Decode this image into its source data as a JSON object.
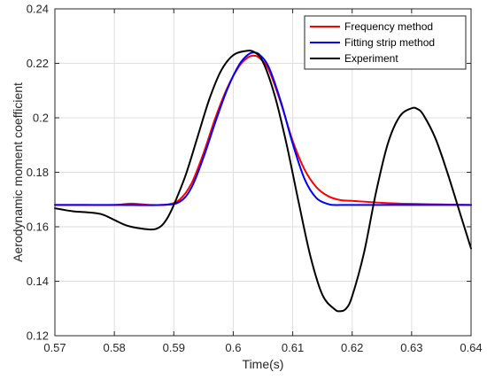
{
  "chart_data": {
    "type": "line",
    "xlabel": "Time(s)",
    "ylabel": "Aerodynamic moment coefficient",
    "xlim": [
      0.57,
      0.64
    ],
    "ylim": [
      0.12,
      0.24
    ],
    "xticks": [
      0.57,
      0.58,
      0.59,
      0.6,
      0.61,
      0.62,
      0.63,
      0.64
    ],
    "xtick_labels": [
      "0.57",
      "0.58",
      "0.59",
      "0.6",
      "0.61",
      "0.62",
      "0.63",
      "0.64"
    ],
    "yticks": [
      0.12,
      0.14,
      0.16,
      0.18,
      0.2,
      0.22,
      0.24
    ],
    "ytick_labels": [
      "0.12",
      "0.14",
      "0.16",
      "0.18",
      "0.2",
      "0.22",
      "0.24"
    ],
    "grid": true,
    "legend_position": "top-right",
    "series": [
      {
        "name": "Frequency method",
        "color": "#ff0000",
        "x": [
          0.57,
          0.575,
          0.58,
          0.583,
          0.586,
          0.589,
          0.591,
          0.593,
          0.595,
          0.597,
          0.599,
          0.601,
          0.6025,
          0.6035,
          0.6045,
          0.606,
          0.608,
          0.61,
          0.612,
          0.614,
          0.616,
          0.618,
          0.62,
          0.625,
          0.63,
          0.635,
          0.64
        ],
        "y": [
          0.168,
          0.168,
          0.168,
          0.1685,
          0.168,
          0.1682,
          0.17,
          0.176,
          0.187,
          0.2,
          0.211,
          0.219,
          0.2222,
          0.2228,
          0.2218,
          0.2175,
          0.2055,
          0.1915,
          0.181,
          0.1745,
          0.1712,
          0.1698,
          0.1695,
          0.1688,
          0.1684,
          0.1682,
          0.168
        ]
      },
      {
        "name": "Fitting strip method",
        "color": "#0000ff",
        "x": [
          0.57,
          0.58,
          0.588,
          0.591,
          0.593,
          0.595,
          0.597,
          0.599,
          0.601,
          0.6025,
          0.6035,
          0.6045,
          0.606,
          0.608,
          0.61,
          0.612,
          0.614,
          0.616,
          0.617,
          0.618,
          0.62,
          0.625,
          0.63,
          0.64
        ],
        "y": [
          0.168,
          0.168,
          0.168,
          0.1692,
          0.1745,
          0.1855,
          0.1985,
          0.2105,
          0.2195,
          0.2232,
          0.224,
          0.223,
          0.2185,
          0.206,
          0.1905,
          0.1775,
          0.1705,
          0.1683,
          0.168,
          0.168,
          0.168,
          0.168,
          0.168,
          0.168
        ]
      },
      {
        "name": "Experiment",
        "color": "#000000",
        "x": [
          0.57,
          0.573,
          0.576,
          0.578,
          0.58,
          0.582,
          0.584,
          0.586,
          0.587,
          0.588,
          0.589,
          0.59,
          0.592,
          0.594,
          0.596,
          0.598,
          0.6,
          0.602,
          0.6035,
          0.605,
          0.607,
          0.609,
          0.611,
          0.613,
          0.615,
          0.617,
          0.618,
          0.619,
          0.62,
          0.622,
          0.624,
          0.626,
          0.628,
          0.63,
          0.631,
          0.632,
          0.634,
          0.636,
          0.638,
          0.64
        ],
        "y": [
          0.1668,
          0.1657,
          0.1652,
          0.1645,
          0.1625,
          0.1605,
          0.1595,
          0.159,
          0.1592,
          0.1605,
          0.1635,
          0.168,
          0.179,
          0.193,
          0.207,
          0.2175,
          0.223,
          0.2245,
          0.2242,
          0.2205,
          0.208,
          0.19,
          0.169,
          0.149,
          0.135,
          0.1298,
          0.129,
          0.13,
          0.1345,
          0.1505,
          0.1725,
          0.1905,
          0.2005,
          0.2035,
          0.2032,
          0.201,
          0.1925,
          0.18,
          0.166,
          0.152
        ]
      }
    ]
  }
}
